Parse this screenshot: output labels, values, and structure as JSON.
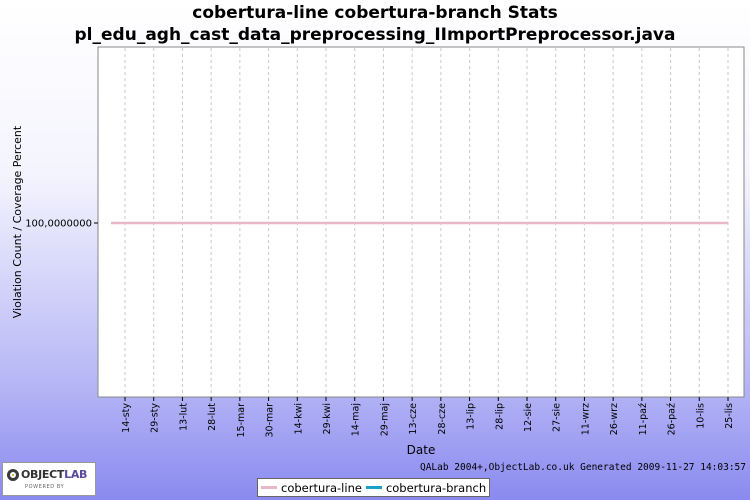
{
  "chart_data": {
    "type": "line",
    "title": [
      "cobertura-line cobertura-branch  Stats",
      "pl_edu_agh_cast_data_preprocessing_IImportPreprocessor.java"
    ],
    "xlabel": "Date",
    "ylabel": "Violation Count / Coverage Percent",
    "x": [
      "14-sty",
      "29-sty",
      "13-lut",
      "28-lut",
      "15-mar",
      "30-mar",
      "14-kwi",
      "29-kwi",
      "14-maj",
      "29-maj",
      "13-cze",
      "28-cze",
      "13-lip",
      "28-lip",
      "12-sie",
      "27-sie",
      "11-wrz",
      "26-wrz",
      "11-paź",
      "26-paź",
      "10-lis",
      "25-lis"
    ],
    "y_ticks": [
      "100,0000000"
    ],
    "ylim": [
      99.5,
      100.5
    ],
    "grid": true,
    "legend_position": "bottom",
    "series": [
      {
        "name": "cobertura-line",
        "values": [
          100,
          100,
          100,
          100,
          100,
          100,
          100,
          100,
          100,
          100,
          100,
          100,
          100,
          100,
          100,
          100,
          100,
          100,
          100,
          100,
          100,
          100
        ],
        "color": "#e8b8c8"
      },
      {
        "name": "cobertura-branch",
        "values": [
          100,
          100,
          100,
          100,
          100,
          100,
          100,
          100,
          100,
          100,
          100,
          100,
          100,
          100,
          100,
          100,
          100,
          100,
          100,
          100,
          100,
          100
        ],
        "color": "#19a2c8"
      }
    ]
  },
  "footer": {
    "generated_note": "QALab 2004+,ObjectLab.co.uk Generated 2009-11-27 14:03:57"
  },
  "logo": {
    "word_prefix": "OBJECT",
    "word_suffix": "LAB",
    "tagline": "POWERED BY"
  },
  "colors": {
    "plot_background": "#ffffff",
    "grid": "#c8c8c8",
    "axis": "#000000"
  }
}
